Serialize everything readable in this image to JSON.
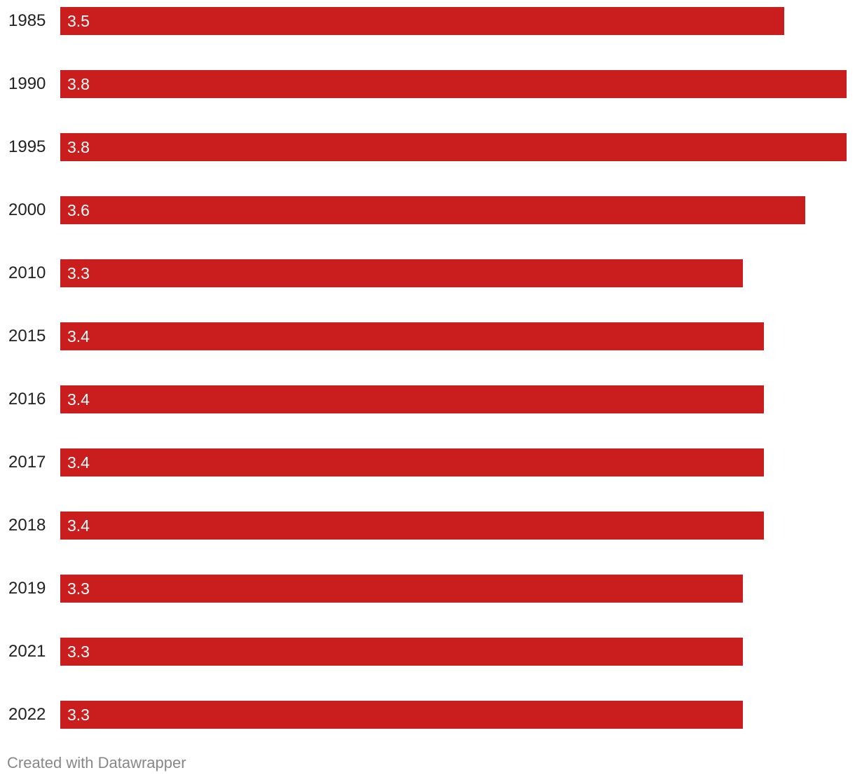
{
  "chart_data": {
    "type": "bar",
    "orientation": "horizontal",
    "categories": [
      "1985",
      "1990",
      "1995",
      "2000",
      "2010",
      "2015",
      "2016",
      "2017",
      "2018",
      "2019",
      "2021",
      "2022"
    ],
    "values": [
      3.5,
      3.8,
      3.8,
      3.6,
      3.3,
      3.4,
      3.4,
      3.4,
      3.4,
      3.3,
      3.3,
      3.3
    ],
    "value_labels": [
      "3.5",
      "3.8",
      "3.8",
      "3.6",
      "3.3",
      "3.4",
      "3.4",
      "3.4",
      "3.4",
      "3.3",
      "3.3",
      "3.3"
    ],
    "xlim": [
      0,
      3.8
    ],
    "bar_color": "#c91d1e",
    "label_color": "#ffffff",
    "title": "",
    "xlabel": "",
    "ylabel": ""
  },
  "footer": {
    "credit": "Created with Datawrapper"
  }
}
